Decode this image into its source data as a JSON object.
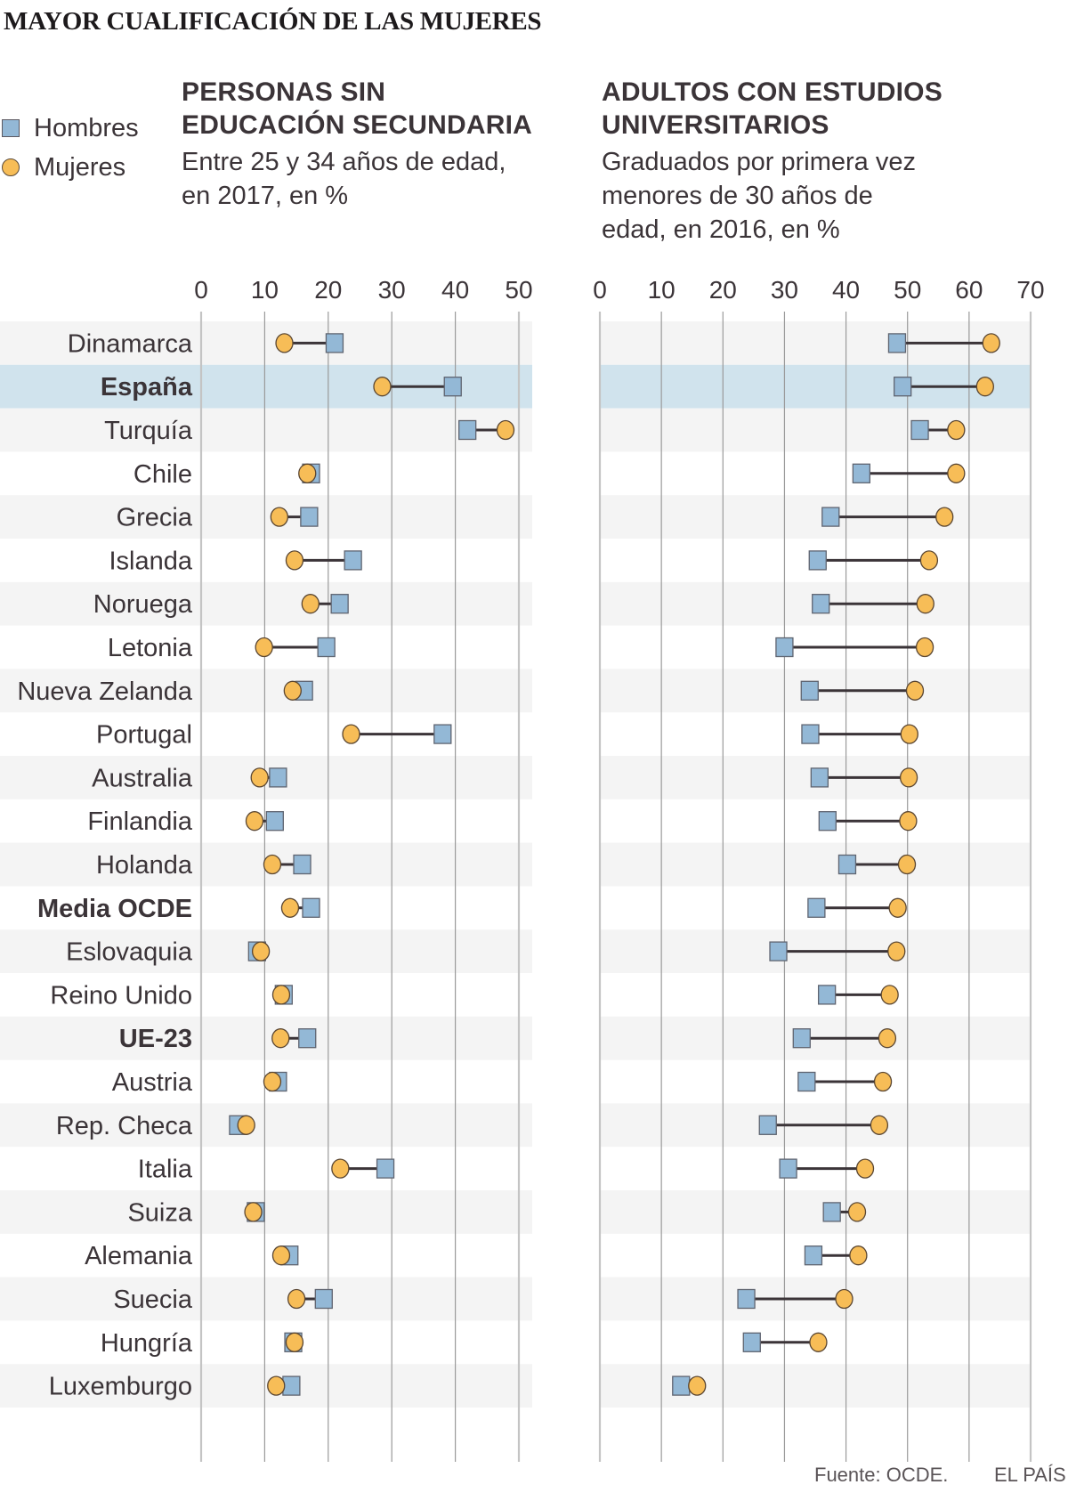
{
  "title": "MAYOR CUALIFICACIÓN DE LAS MUJERES",
  "legend": [
    {
      "label": "Hombres",
      "shape": "square",
      "color": "#93b8d6"
    },
    {
      "label": "Mujeres",
      "shape": "circle",
      "color": "#f7bd57"
    }
  ],
  "colors": {
    "hombres": "#93b8d6",
    "mujeres": "#f7bd57",
    "highlight_row": "#d0e3ed",
    "stripe_row": "#f4f4f4",
    "connector": "#3b3438"
  },
  "footer": {
    "source": "Fuente: OCDE.",
    "brand": "EL PAÍS"
  },
  "chart_data": [
    {
      "type": "dumbbell",
      "title": "PERSONAS SIN EDUCACIÓN SECUNDARIA",
      "title_lines": [
        "PERSONAS SIN",
        "EDUCACIÓN SECUNDARIA"
      ],
      "subtitle_lines": [
        "Entre 25 y 34 años de edad,",
        "en 2017, en %"
      ],
      "xlabel": "",
      "ylabel": "",
      "xlim": [
        0,
        50
      ],
      "ticks": [
        0,
        10,
        20,
        30,
        40,
        50
      ],
      "grid": true,
      "categories": [
        "Dinamarca",
        "España",
        "Turquía",
        "Chile",
        "Grecia",
        "Islanda",
        "Noruega",
        "Letonia",
        "Nueva Zelanda",
        "Portugal",
        "Australia",
        "Finlandia",
        "Holanda",
        "Media OCDE",
        "Eslovaquia",
        "Reino Unido",
        "UE-23",
        "Austria",
        "Rep. Checa",
        "Italia",
        "Suiza",
        "Alemania",
        "Suecia",
        "Hungría",
        "Luxemburgo"
      ],
      "series": [
        {
          "name": "Hombres",
          "values": [
            21.0,
            39.6,
            41.9,
            17.3,
            17.0,
            23.9,
            21.8,
            19.7,
            16.2,
            38.0,
            12.1,
            11.6,
            15.9,
            17.3,
            8.8,
            13.0,
            16.7,
            12.1,
            5.8,
            29.0,
            8.6,
            13.9,
            19.3,
            14.5,
            14.2
          ]
        },
        {
          "name": "Mujeres",
          "values": [
            13.1,
            28.5,
            47.9,
            16.7,
            12.3,
            14.7,
            17.2,
            9.9,
            14.4,
            23.6,
            9.2,
            8.4,
            11.2,
            14.0,
            9.4,
            12.6,
            12.5,
            11.2,
            7.1,
            21.9,
            8.2,
            12.6,
            15.0,
            14.7,
            11.8
          ]
        }
      ]
    },
    {
      "type": "dumbbell",
      "title": "ADULTOS CON ESTUDIOS UNIVERSITARIOS",
      "title_lines": [
        "ADULTOS CON ESTUDIOS",
        "UNIVERSITARIOS"
      ],
      "subtitle_lines": [
        "Graduados por primera vez",
        "menores de 30 años de",
        "edad, en 2016, en %"
      ],
      "xlabel": "",
      "ylabel": "",
      "xlim": [
        0,
        70
      ],
      "ticks": [
        0,
        10,
        20,
        30,
        40,
        50,
        60,
        70
      ],
      "grid": true,
      "categories": [
        "Dinamarca",
        "España",
        "Turquía",
        "Chile",
        "Grecia",
        "Islanda",
        "Noruega",
        "Letonia",
        "Nueva Zelanda",
        "Portugal",
        "Australia",
        "Finlandia",
        "Holanda",
        "Media OCDE",
        "Eslovaquia",
        "Reino Unido",
        "UE-23",
        "Austria",
        "Rep. Checa",
        "Italia",
        "Suiza",
        "Alemania",
        "Suecia",
        "Hungría",
        "Luxemburgo"
      ],
      "series": [
        {
          "name": "Hombres",
          "values": [
            48.3,
            49.2,
            52.0,
            42.5,
            37.5,
            35.4,
            35.9,
            30.0,
            34.1,
            34.2,
            35.7,
            37.0,
            40.2,
            35.2,
            29.0,
            36.9,
            32.8,
            33.6,
            27.3,
            30.6,
            37.7,
            34.7,
            23.8,
            24.7,
            13.2
          ]
        },
        {
          "name": "Mujeres",
          "values": [
            63.6,
            62.6,
            57.9,
            57.9,
            56.0,
            53.5,
            52.9,
            52.8,
            51.2,
            50.3,
            50.2,
            50.1,
            49.9,
            48.4,
            48.2,
            47.1,
            46.7,
            46.0,
            45.4,
            43.1,
            41.8,
            42.0,
            39.7,
            35.5,
            15.8
          ]
        }
      ]
    }
  ],
  "rows": {
    "highlighted": [
      "España"
    ],
    "bold": [
      "España",
      "Media OCDE",
      "UE-23"
    ]
  }
}
